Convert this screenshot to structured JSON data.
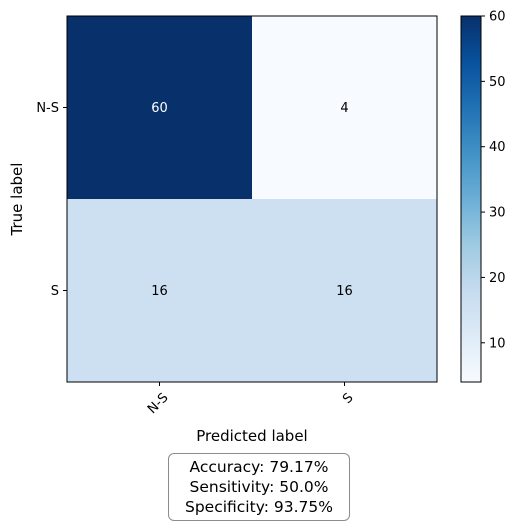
{
  "chart_data": {
    "type": "heatmap",
    "subtype": "confusion-matrix",
    "xlabel": "Predicted label",
    "ylabel": "True label",
    "x_categories": [
      "N-S",
      "S"
    ],
    "y_categories": [
      "N-S",
      "S"
    ],
    "matrix": [
      [
        60,
        4
      ],
      [
        16,
        16
      ]
    ],
    "colormap": "Blues",
    "colorbar": {
      "min": 4,
      "max": 60,
      "ticks": [
        10,
        20,
        30,
        40,
        50,
        60
      ]
    },
    "grid": false
  },
  "stats": {
    "accuracy": "Accuracy: 79.17%",
    "sensitivity": "Sensitivity: 50.0%",
    "specificity": "Specificity: 93.75%"
  }
}
